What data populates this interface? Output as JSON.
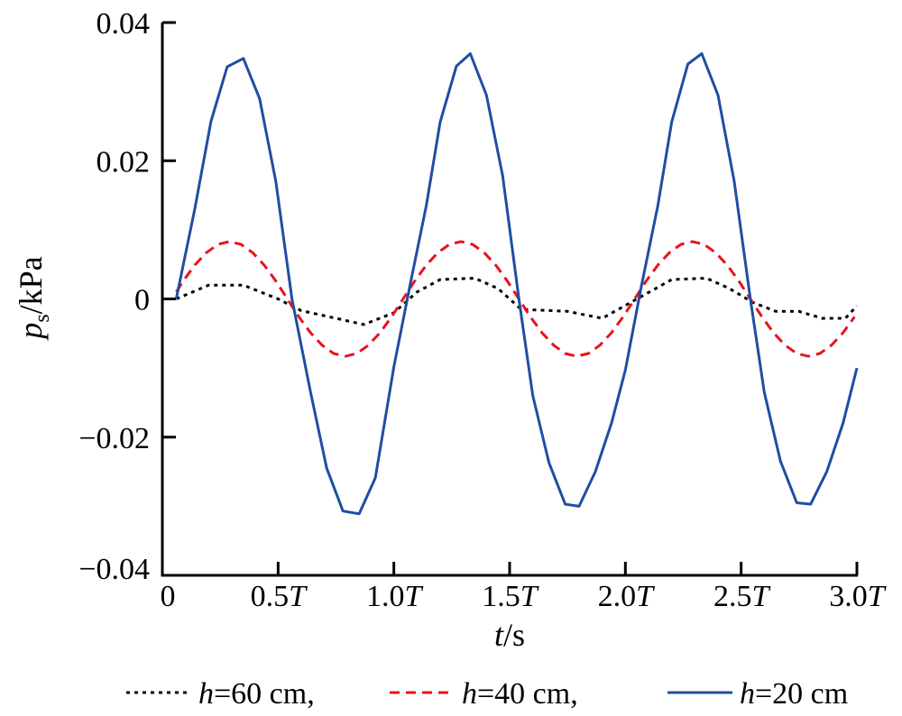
{
  "chart_data": {
    "type": "line",
    "title": "",
    "xlabel": {
      "var": "t",
      "unit": "s"
    },
    "ylabel": {
      "var": "p",
      "sub": "s",
      "unit": "kPa"
    },
    "xlim": [
      0,
      3.0
    ],
    "ylim": [
      -0.04,
      0.04
    ],
    "grid": false,
    "legend_placement": "bottom",
    "x_ticks": [
      {
        "value": 0,
        "num": "0",
        "suffix": ""
      },
      {
        "value": 0.5,
        "num": "0.5",
        "suffix": "T"
      },
      {
        "value": 1.0,
        "num": "1.0",
        "suffix": "T"
      },
      {
        "value": 1.5,
        "num": "1.5",
        "suffix": "T"
      },
      {
        "value": 2.0,
        "num": "2.0",
        "suffix": "T"
      },
      {
        "value": 2.5,
        "num": "2.5",
        "suffix": "T"
      },
      {
        "value": 3.0,
        "num": "3.0",
        "suffix": "T"
      }
    ],
    "y_ticks": [
      {
        "value": 0.04,
        "label": "0.04"
      },
      {
        "value": 0.02,
        "label": "0.02"
      },
      {
        "value": 0,
        "label": "0"
      },
      {
        "value": -0.02,
        "label": "−0.02"
      },
      {
        "value": -0.04,
        "label": "−0.04"
      }
    ],
    "x_unit_note": "x values in multiples of wave period T",
    "series": [
      {
        "name": "h=60 cm",
        "legend_var": "h",
        "legend_rest": "=60 cm,",
        "color": "#000000",
        "style": "dotted",
        "points": [
          [
            0.06,
            0
          ],
          [
            0.2,
            0.002
          ],
          [
            0.35,
            0.002
          ],
          [
            0.5,
            0.0
          ],
          [
            0.6,
            -0.0017
          ],
          [
            0.75,
            -0.0028
          ],
          [
            0.87,
            -0.0037
          ],
          [
            1.0,
            -0.002
          ],
          [
            1.1,
            0.001
          ],
          [
            1.2,
            0.0028
          ],
          [
            1.35,
            0.003
          ],
          [
            1.45,
            0.0015
          ],
          [
            1.55,
            -0.0015
          ],
          [
            1.75,
            -0.0018
          ],
          [
            1.9,
            -0.0028
          ],
          [
            2.05,
            0.0
          ],
          [
            2.2,
            0.0028
          ],
          [
            2.35,
            0.003
          ],
          [
            2.45,
            0.0015
          ],
          [
            2.55,
            -0.0005
          ],
          [
            2.65,
            -0.0018
          ],
          [
            2.75,
            -0.0018
          ],
          [
            2.85,
            -0.0028
          ],
          [
            2.95,
            -0.0028
          ],
          [
            3.0,
            -0.001
          ]
        ]
      },
      {
        "name": "h=40 cm",
        "legend_var": "h",
        "legend_rest": "=40 cm,",
        "color": "#e8141c",
        "style": "dashed",
        "points": [
          [
            0.06,
            0.001
          ],
          [
            0.09,
            0.0026
          ],
          [
            0.14,
            0.0049
          ],
          [
            0.19,
            0.0067
          ],
          [
            0.24,
            0.0079
          ],
          [
            0.29,
            0.0083
          ],
          [
            0.34,
            0.0079
          ],
          [
            0.39,
            0.0067
          ],
          [
            0.44,
            0.0049
          ],
          [
            0.49,
            0.0026
          ],
          [
            0.54,
            0
          ],
          [
            0.59,
            -0.0026
          ],
          [
            0.64,
            -0.0049
          ],
          [
            0.69,
            -0.0067
          ],
          [
            0.74,
            -0.0079
          ],
          [
            0.79,
            -0.0083
          ],
          [
            0.84,
            -0.0079
          ],
          [
            0.89,
            -0.0067
          ],
          [
            0.94,
            -0.0049
          ],
          [
            0.99,
            -0.0026
          ],
          [
            1.04,
            0
          ],
          [
            1.09,
            0.0026
          ],
          [
            1.14,
            0.0049
          ],
          [
            1.19,
            0.0067
          ],
          [
            1.24,
            0.0079
          ],
          [
            1.29,
            0.0083
          ],
          [
            1.34,
            0.0079
          ],
          [
            1.39,
            0.0067
          ],
          [
            1.44,
            0.0049
          ],
          [
            1.49,
            0.0026
          ],
          [
            1.54,
            0
          ],
          [
            1.59,
            -0.0026
          ],
          [
            1.64,
            -0.0049
          ],
          [
            1.69,
            -0.0067
          ],
          [
            1.74,
            -0.0079
          ],
          [
            1.79,
            -0.0083
          ],
          [
            1.84,
            -0.0079
          ],
          [
            1.89,
            -0.0067
          ],
          [
            1.94,
            -0.0049
          ],
          [
            1.99,
            -0.0026
          ],
          [
            2.04,
            0
          ],
          [
            2.09,
            0.0026
          ],
          [
            2.14,
            0.0049
          ],
          [
            2.19,
            0.0067
          ],
          [
            2.24,
            0.0079
          ],
          [
            2.29,
            0.0083
          ],
          [
            2.34,
            0.0079
          ],
          [
            2.39,
            0.0067
          ],
          [
            2.44,
            0.0049
          ],
          [
            2.49,
            0.0026
          ],
          [
            2.54,
            0
          ],
          [
            2.59,
            -0.0026
          ],
          [
            2.64,
            -0.0049
          ],
          [
            2.69,
            -0.0067
          ],
          [
            2.74,
            -0.0079
          ],
          [
            2.79,
            -0.0083
          ],
          [
            2.84,
            -0.0079
          ],
          [
            2.89,
            -0.0067
          ],
          [
            2.94,
            -0.0049
          ],
          [
            2.99,
            -0.0026
          ]
        ]
      },
      {
        "name": "h=20 cm",
        "legend_var": "h",
        "legend_rest": "=20 cm",
        "color": "#1f4ea3",
        "style": "solid",
        "points": [
          [
            0.06,
            0
          ],
          [
            0.14,
            0.013
          ],
          [
            0.21,
            0.0257
          ],
          [
            0.28,
            0.0336
          ],
          [
            0.35,
            0.0348
          ],
          [
            0.42,
            0.029
          ],
          [
            0.49,
            0.017
          ],
          [
            0.56,
            0.0
          ],
          [
            0.64,
            -0.0135
          ],
          [
            0.71,
            -0.0245
          ],
          [
            0.78,
            -0.0307
          ],
          [
            0.85,
            -0.0311
          ],
          [
            0.92,
            -0.0259
          ],
          [
            1.0,
            -0.0098
          ],
          [
            1.07,
            0.002
          ],
          [
            1.14,
            0.0135
          ],
          [
            1.2,
            0.0256
          ],
          [
            1.27,
            0.0337
          ],
          [
            1.33,
            0.0355
          ],
          [
            1.4,
            0.0295
          ],
          [
            1.47,
            0.0178
          ],
          [
            1.54,
            0.0
          ],
          [
            1.6,
            -0.014
          ],
          [
            1.67,
            -0.0237
          ],
          [
            1.74,
            -0.0297
          ],
          [
            1.8,
            -0.03
          ],
          [
            1.87,
            -0.025
          ],
          [
            1.94,
            -0.018
          ],
          [
            2.0,
            -0.0103
          ],
          [
            2.07,
            0.002
          ],
          [
            2.14,
            0.0135
          ],
          [
            2.2,
            0.0256
          ],
          [
            2.27,
            0.034
          ],
          [
            2.33,
            0.0355
          ],
          [
            2.4,
            0.0295
          ],
          [
            2.47,
            0.017
          ],
          [
            2.54,
            0.0
          ],
          [
            2.6,
            -0.0135
          ],
          [
            2.67,
            -0.0235
          ],
          [
            2.74,
            -0.0295
          ],
          [
            2.8,
            -0.0297
          ],
          [
            2.87,
            -0.025
          ],
          [
            2.94,
            -0.018
          ],
          [
            3.0,
            -0.01
          ]
        ]
      }
    ]
  }
}
